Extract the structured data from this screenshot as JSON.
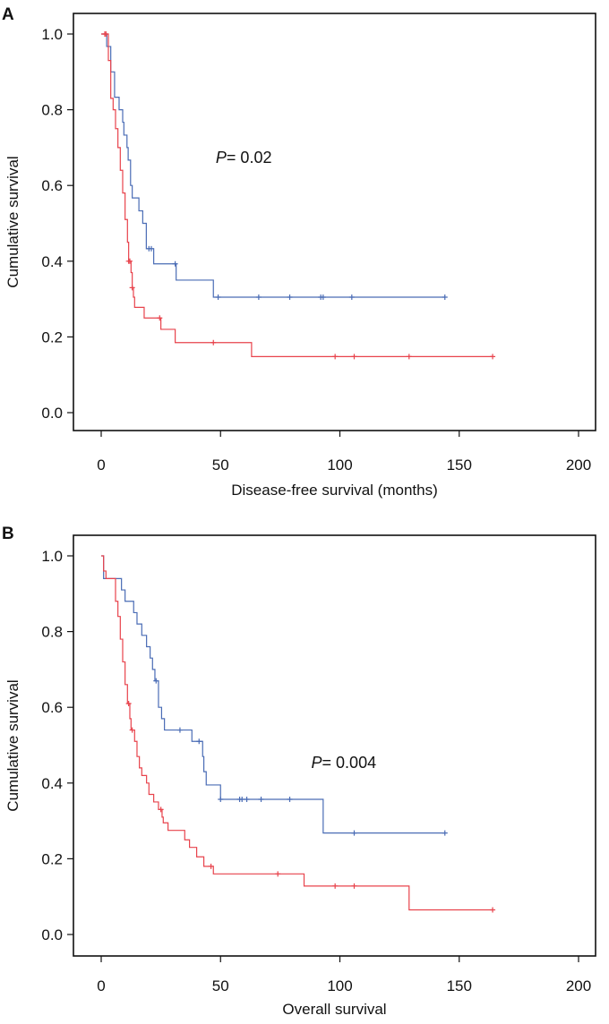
{
  "chart_data": [
    {
      "type": "line",
      "subtype": "kaplan-meier",
      "panel_label": "A",
      "xlabel": "Disease-free survival (months)",
      "ylabel": "Cumulative survival",
      "xlim": [
        0,
        200
      ],
      "ylim": [
        0,
        1
      ],
      "xticks": [
        "0",
        "50",
        "100",
        "150",
        "200"
      ],
      "yticks": [
        "0.0",
        "0.2",
        "0.4",
        "0.6",
        "0.8",
        "1.0"
      ],
      "grid": false,
      "annotation": {
        "prefix": "P",
        "text": "= 0.02",
        "x": 48,
        "y": 0.66
      },
      "series": [
        {
          "name": "blue group",
          "color": "#4a6cb5",
          "steps": [
            [
              0,
              1
            ],
            [
              2.3,
              0.967
            ],
            [
              4,
              0.9
            ],
            [
              5.6,
              0.833
            ],
            [
              7.5,
              0.8
            ],
            [
              9,
              0.767
            ],
            [
              9.5,
              0.733
            ],
            [
              10.8,
              0.7
            ],
            [
              11.3,
              0.667
            ],
            [
              12.3,
              0.6
            ],
            [
              13,
              0.567
            ],
            [
              15.8,
              0.533
            ],
            [
              17.4,
              0.5
            ],
            [
              18.9,
              0.433
            ],
            [
              22,
              0.393
            ],
            [
              31.4,
              0.35
            ],
            [
              47,
              0.305
            ]
          ],
          "end": 144,
          "censored": [
            20,
            21,
            31,
            49,
            66,
            79,
            92,
            93,
            105,
            144
          ]
        },
        {
          "name": "red group",
          "color": "#e8434c",
          "steps": [
            [
              0,
              1
            ],
            [
              3,
              0.93
            ],
            [
              4,
              0.83
            ],
            [
              5,
              0.8
            ],
            [
              6,
              0.75
            ],
            [
              7,
              0.7
            ],
            [
              8,
              0.64
            ],
            [
              9,
              0.58
            ],
            [
              10,
              0.51
            ],
            [
              11,
              0.45
            ],
            [
              11.5,
              0.4
            ],
            [
              12.5,
              0.37
            ],
            [
              13,
              0.33
            ],
            [
              13.5,
              0.305
            ],
            [
              14,
              0.278
            ],
            [
              18,
              0.25
            ],
            [
              25,
              0.22
            ],
            [
              31,
              0.185
            ],
            [
              63,
              0.148
            ]
          ],
          "end": 164,
          "censored": [
            1.5,
            2,
            11.5,
            12,
            13,
            24.5,
            47,
            98,
            106,
            129,
            164
          ]
        }
      ]
    },
    {
      "type": "line",
      "subtype": "kaplan-meier",
      "panel_label": "B",
      "xlabel": "Overall survival",
      "ylabel": "Cumulative survival",
      "xlim": [
        0,
        200
      ],
      "ylim": [
        0,
        1
      ],
      "xticks": [
        "0",
        "50",
        "100",
        "150",
        "200"
      ],
      "yticks": [
        "0.0",
        "0.2",
        "0.4",
        "0.6",
        "0.8",
        "1.0"
      ],
      "grid": false,
      "annotation": {
        "prefix": "P",
        "text": "= 0.004",
        "x": 88,
        "y": 0.44
      },
      "series": [
        {
          "name": "blue group",
          "color": "#4a6cb5",
          "steps": [
            [
              0,
              1
            ],
            [
              1,
              0.94
            ],
            [
              8.5,
              0.91
            ],
            [
              10,
              0.88
            ],
            [
              13.6,
              0.85
            ],
            [
              15,
              0.82
            ],
            [
              17,
              0.79
            ],
            [
              19,
              0.76
            ],
            [
              20.5,
              0.73
            ],
            [
              21.5,
              0.7
            ],
            [
              22.5,
              0.67
            ],
            [
              24,
              0.6
            ],
            [
              25.3,
              0.57
            ],
            [
              26.5,
              0.54
            ],
            [
              38,
              0.51
            ],
            [
              42.5,
              0.47
            ],
            [
              43,
              0.43
            ],
            [
              44,
              0.395
            ],
            [
              50,
              0.357
            ],
            [
              93,
              0.268
            ]
          ],
          "end": 144,
          "censored": [
            23,
            33,
            41,
            50,
            58,
            59,
            61,
            67,
            79,
            106,
            144
          ]
        },
        {
          "name": "red group",
          "color": "#e8434c",
          "steps": [
            [
              0,
              1
            ],
            [
              1,
              0.96
            ],
            [
              2,
              0.94
            ],
            [
              6,
              0.88
            ],
            [
              7,
              0.84
            ],
            [
              8,
              0.78
            ],
            [
              9,
              0.72
            ],
            [
              10,
              0.66
            ],
            [
              11,
              0.61
            ],
            [
              12,
              0.57
            ],
            [
              12.5,
              0.54
            ],
            [
              14,
              0.51
            ],
            [
              15,
              0.47
            ],
            [
              16,
              0.44
            ],
            [
              17,
              0.42
            ],
            [
              19,
              0.4
            ],
            [
              20,
              0.37
            ],
            [
              22,
              0.35
            ],
            [
              24,
              0.33
            ],
            [
              25.5,
              0.31
            ],
            [
              26,
              0.295
            ],
            [
              28,
              0.275
            ],
            [
              35,
              0.25
            ],
            [
              37,
              0.23
            ],
            [
              40,
              0.205
            ],
            [
              43,
              0.18
            ],
            [
              47,
              0.16
            ],
            [
              85,
              0.128
            ],
            [
              129,
              0.065
            ]
          ],
          "end": 164,
          "censored": [
            11.5,
            13,
            25,
            46,
            74,
            98,
            106,
            164
          ]
        }
      ]
    }
  ]
}
